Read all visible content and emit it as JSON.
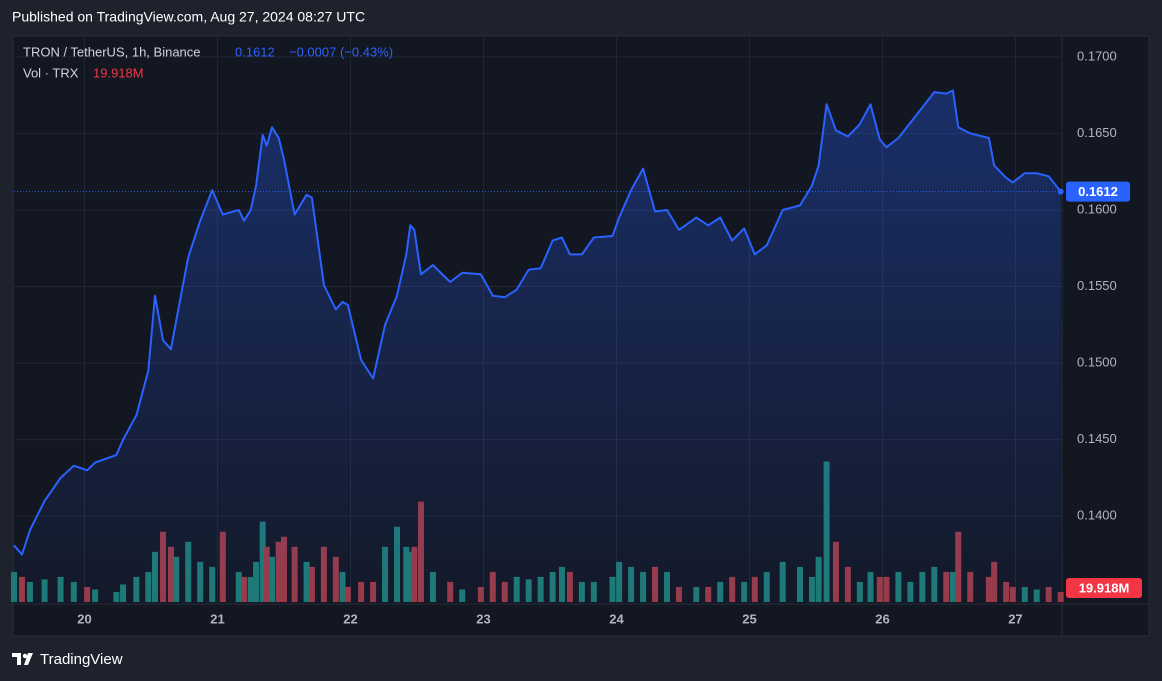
{
  "header": {
    "published": "Published on TradingView.com, Aug 27, 2024 08:27 UTC",
    "symbol": "TRON / TetherUS, 1h, Binance",
    "change_label": "−0.0007 (−0.43%)",
    "volume_label": "Vol · TRX",
    "brand": "TradingView"
  },
  "chart_data": {
    "type": "line",
    "grid": true,
    "x": [
      19.47,
      19.53,
      19.59,
      19.7,
      19.82,
      19.92,
      20.02,
      20.08,
      20.24,
      20.29,
      20.39,
      20.48,
      20.53,
      20.59,
      20.65,
      20.69,
      20.78,
      20.87,
      20.96,
      21.04,
      21.16,
      21.2,
      21.25,
      21.29,
      21.34,
      21.37,
      21.41,
      21.46,
      21.5,
      21.58,
      21.67,
      21.71,
      21.8,
      21.89,
      21.94,
      21.98,
      22.08,
      22.17,
      22.26,
      22.35,
      22.42,
      22.45,
      22.48,
      22.53,
      22.62,
      22.75,
      22.84,
      22.98,
      23.07,
      23.16,
      23.25,
      23.34,
      23.43,
      23.52,
      23.59,
      23.65,
      23.74,
      23.83,
      23.97,
      24.02,
      24.11,
      24.2,
      24.29,
      24.38,
      24.47,
      24.6,
      24.69,
      24.78,
      24.87,
      24.96,
      25.04,
      25.13,
      25.25,
      25.38,
      25.47,
      25.52,
      25.58,
      25.65,
      25.74,
      25.83,
      25.91,
      25.98,
      26.03,
      26.12,
      26.21,
      26.3,
      26.39,
      26.48,
      26.53,
      26.57,
      26.66,
      26.8,
      26.84,
      26.93,
      26.98,
      27.07,
      27.16,
      27.25,
      27.34
    ],
    "series": [
      {
        "color": "#2962ff",
        "values": [
          0.1381,
          0.1375,
          0.1391,
          0.141,
          0.1425,
          0.1433,
          0.143,
          0.1435,
          0.144,
          0.145,
          0.1466,
          0.1495,
          0.1544,
          0.1515,
          0.1509,
          0.1528,
          0.1569,
          0.1593,
          0.1613,
          0.1597,
          0.16,
          0.1593,
          0.16,
          0.1616,
          0.1649,
          0.1642,
          0.1654,
          0.1647,
          0.1633,
          0.1597,
          0.161,
          0.1608,
          0.1551,
          0.1535,
          0.154,
          0.1538,
          0.1502,
          0.149,
          0.1525,
          0.1544,
          0.1571,
          0.159,
          0.1587,
          0.1558,
          0.1564,
          0.1553,
          0.1559,
          0.1558,
          0.1544,
          0.1543,
          0.1548,
          0.1561,
          0.1562,
          0.158,
          0.1582,
          0.1571,
          0.1571,
          0.1582,
          0.1583,
          0.1595,
          0.1613,
          0.1627,
          0.1599,
          0.16,
          0.1587,
          0.1595,
          0.159,
          0.1595,
          0.158,
          0.1588,
          0.1571,
          0.1577,
          0.16,
          0.1603,
          0.1616,
          0.1629,
          0.1669,
          0.1652,
          0.1648,
          0.1656,
          0.1669,
          0.1646,
          0.1641,
          0.1647,
          0.1657,
          0.1667,
          0.1677,
          0.1676,
          0.1678,
          0.1654,
          0.165,
          0.1647,
          0.1629,
          0.1621,
          0.1618,
          0.1624,
          0.1624,
          0.1622,
          0.1612
        ]
      }
    ],
    "volume": {
      "up_color": "#1d7a73",
      "down_color": "#9b3a45",
      "last_value_label": "19.918M",
      "ylim": [
        0,
        1120
      ],
      "values": [
        60,
        50,
        40,
        45,
        50,
        40,
        30,
        25,
        20,
        35,
        50,
        60,
        100,
        140,
        110,
        90,
        120,
        80,
        70,
        140,
        60,
        50,
        50,
        80,
        160,
        110,
        90,
        120,
        130,
        110,
        80,
        70,
        110,
        90,
        60,
        30,
        40,
        40,
        110,
        150,
        110,
        100,
        110,
        200,
        60,
        40,
        25,
        30,
        60,
        40,
        50,
        45,
        50,
        60,
        70,
        60,
        40,
        40,
        50,
        80,
        70,
        60,
        70,
        60,
        30,
        30,
        30,
        40,
        50,
        40,
        50,
        60,
        80,
        70,
        50,
        90,
        280,
        120,
        70,
        40,
        60,
        50,
        50,
        60,
        40,
        60,
        70,
        60,
        60,
        140,
        60,
        50,
        80,
        40,
        30,
        30,
        25,
        30,
        19.918
      ]
    },
    "xlim": [
      19.47,
      27.35
    ],
    "xticks": [
      20,
      21,
      22,
      23,
      24,
      25,
      26,
      27
    ],
    "ylim": [
      0.1344,
      0.1711
    ],
    "yticks": [
      {
        "value": 0.14,
        "label": "0.1400"
      },
      {
        "value": 0.145,
        "label": "0.1450"
      },
      {
        "value": 0.15,
        "label": "0.1500"
      },
      {
        "value": 0.155,
        "label": "0.1550"
      },
      {
        "value": 0.16,
        "label": "0.1600"
      },
      {
        "value": 0.165,
        "label": "0.1650"
      },
      {
        "value": 0.17,
        "label": "0.1700"
      }
    ]
  }
}
